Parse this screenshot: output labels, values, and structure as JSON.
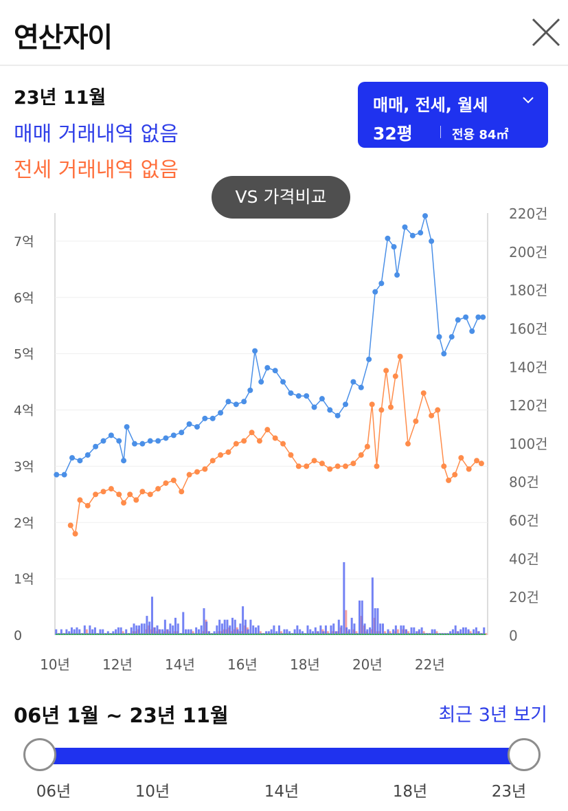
{
  "header": {
    "title": "연산자이"
  },
  "summary": {
    "date": "23년 11월",
    "sale_message": "매매 거래내역 없음",
    "jeonse_message": "전세 거래내역 없음"
  },
  "filter": {
    "type_label": "매매, 전세, 월세",
    "pyeong": "32평",
    "area": "전용 84㎡"
  },
  "vs_button": "VS 가격비교",
  "chart_data": {
    "type": "line",
    "left_axis": {
      "ticks": [
        "0",
        "1억",
        "2억",
        "3억",
        "4억",
        "5억",
        "6억",
        "7억"
      ],
      "range": [
        0,
        7.5
      ]
    },
    "right_axis": {
      "ticks": [
        "0",
        "20건",
        "40건",
        "60건",
        "80건",
        "100건",
        "120건",
        "140건",
        "160건",
        "180건",
        "200건",
        "220건"
      ],
      "range": [
        0,
        220
      ]
    },
    "x_ticks": [
      "10년",
      "12년",
      "14년",
      "16년",
      "18년",
      "20년",
      "22년"
    ],
    "x_range": [
      2010.0,
      2023.85
    ],
    "series": [
      {
        "key": "sale",
        "color": "#4a8fe7",
        "points": [
          [
            2010.05,
            2.85
          ],
          [
            2010.3,
            2.85
          ],
          [
            2010.55,
            3.15
          ],
          [
            2010.8,
            3.1
          ],
          [
            2011.05,
            3.2
          ],
          [
            2011.3,
            3.35
          ],
          [
            2011.55,
            3.45
          ],
          [
            2011.8,
            3.55
          ],
          [
            2012.05,
            3.45
          ],
          [
            2012.2,
            3.1
          ],
          [
            2012.3,
            3.7
          ],
          [
            2012.55,
            3.4
          ],
          [
            2012.8,
            3.4
          ],
          [
            2013.05,
            3.45
          ],
          [
            2013.3,
            3.45
          ],
          [
            2013.55,
            3.5
          ],
          [
            2013.8,
            3.55
          ],
          [
            2014.05,
            3.6
          ],
          [
            2014.3,
            3.75
          ],
          [
            2014.55,
            3.7
          ],
          [
            2014.8,
            3.85
          ],
          [
            2015.05,
            3.85
          ],
          [
            2015.3,
            3.95
          ],
          [
            2015.55,
            4.15
          ],
          [
            2015.8,
            4.1
          ],
          [
            2016.05,
            4.15
          ],
          [
            2016.25,
            4.35
          ],
          [
            2016.4,
            5.05
          ],
          [
            2016.6,
            4.5
          ],
          [
            2016.8,
            4.75
          ],
          [
            2017.05,
            4.7
          ],
          [
            2017.3,
            4.5
          ],
          [
            2017.55,
            4.3
          ],
          [
            2017.8,
            4.25
          ],
          [
            2018.05,
            4.25
          ],
          [
            2018.3,
            4.05
          ],
          [
            2018.55,
            4.2
          ],
          [
            2018.8,
            4.0
          ],
          [
            2019.05,
            3.9
          ],
          [
            2019.3,
            4.1
          ],
          [
            2019.55,
            4.5
          ],
          [
            2019.8,
            4.4
          ],
          [
            2020.05,
            4.9
          ],
          [
            2020.25,
            6.1
          ],
          [
            2020.45,
            6.25
          ],
          [
            2020.65,
            7.05
          ],
          [
            2020.85,
            6.9
          ],
          [
            2020.95,
            6.4
          ],
          [
            2021.2,
            7.25
          ],
          [
            2021.45,
            7.1
          ],
          [
            2021.7,
            7.15
          ],
          [
            2021.85,
            7.45
          ],
          [
            2022.05,
            7.0
          ],
          [
            2022.3,
            5.3
          ],
          [
            2022.45,
            5.0
          ],
          [
            2022.7,
            5.3
          ],
          [
            2022.9,
            5.6
          ],
          [
            2023.15,
            5.65
          ],
          [
            2023.35,
            5.4
          ],
          [
            2023.55,
            5.65
          ],
          [
            2023.7,
            5.65
          ]
        ]
      },
      {
        "key": "jeonse",
        "color": "#ff8c4a",
        "points": [
          [
            2010.5,
            1.95
          ],
          [
            2010.65,
            1.8
          ],
          [
            2010.8,
            2.4
          ],
          [
            2011.05,
            2.3
          ],
          [
            2011.3,
            2.5
          ],
          [
            2011.55,
            2.55
          ],
          [
            2011.8,
            2.6
          ],
          [
            2012.05,
            2.5
          ],
          [
            2012.2,
            2.35
          ],
          [
            2012.4,
            2.5
          ],
          [
            2012.6,
            2.4
          ],
          [
            2012.8,
            2.55
          ],
          [
            2013.05,
            2.5
          ],
          [
            2013.3,
            2.6
          ],
          [
            2013.55,
            2.7
          ],
          [
            2013.8,
            2.75
          ],
          [
            2014.05,
            2.55
          ],
          [
            2014.3,
            2.85
          ],
          [
            2014.55,
            2.9
          ],
          [
            2014.8,
            2.95
          ],
          [
            2015.05,
            3.1
          ],
          [
            2015.3,
            3.2
          ],
          [
            2015.55,
            3.25
          ],
          [
            2015.8,
            3.4
          ],
          [
            2016.05,
            3.45
          ],
          [
            2016.3,
            3.6
          ],
          [
            2016.55,
            3.45
          ],
          [
            2016.8,
            3.65
          ],
          [
            2017.05,
            3.5
          ],
          [
            2017.3,
            3.4
          ],
          [
            2017.55,
            3.2
          ],
          [
            2017.8,
            3.0
          ],
          [
            2018.05,
            3.0
          ],
          [
            2018.3,
            3.1
          ],
          [
            2018.55,
            3.05
          ],
          [
            2018.8,
            2.95
          ],
          [
            2019.05,
            3.0
          ],
          [
            2019.3,
            3.0
          ],
          [
            2019.55,
            3.05
          ],
          [
            2019.8,
            3.2
          ],
          [
            2020.0,
            3.35
          ],
          [
            2020.15,
            4.1
          ],
          [
            2020.3,
            3.0
          ],
          [
            2020.45,
            4.0
          ],
          [
            2020.6,
            4.7
          ],
          [
            2020.75,
            4.05
          ],
          [
            2020.9,
            4.6
          ],
          [
            2021.05,
            4.95
          ],
          [
            2021.3,
            3.4
          ],
          [
            2021.55,
            3.8
          ],
          [
            2021.8,
            4.3
          ],
          [
            2022.05,
            3.9
          ],
          [
            2022.25,
            4.0
          ],
          [
            2022.45,
            3.0
          ],
          [
            2022.6,
            2.75
          ],
          [
            2022.8,
            2.85
          ],
          [
            2023.0,
            3.15
          ],
          [
            2023.25,
            2.95
          ],
          [
            2023.5,
            3.1
          ],
          [
            2023.65,
            3.05
          ]
        ]
      }
    ],
    "volume_colors": [
      "#5b6cf2",
      "#f08a8a",
      "#39b54a"
    ]
  },
  "range": {
    "text": "06년 1월 ~ 23년 11월",
    "recent_label": "최근 3년 보기",
    "ticks": [
      "06년",
      "10년",
      "14년",
      "18년",
      "23년"
    ]
  }
}
